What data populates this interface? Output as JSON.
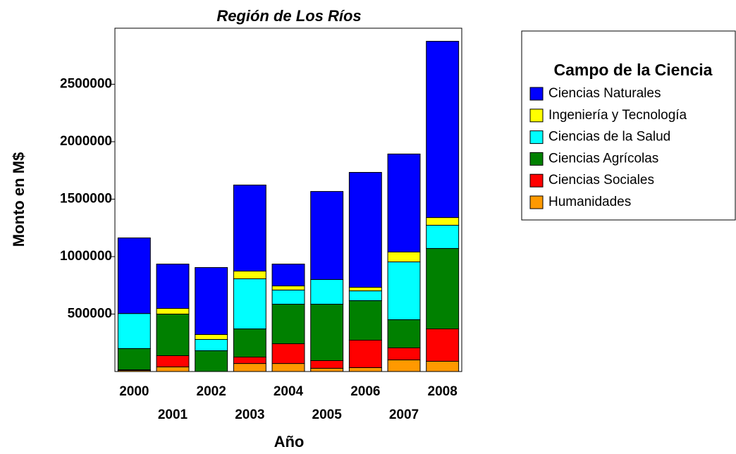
{
  "chart_data": {
    "type": "stacked_bar",
    "title": "Región de Los Ríos",
    "x_label": "Año",
    "y_label": "Monto en M$",
    "legend_title": "Campo de la Ciencia",
    "categories": [
      "2000",
      "2001",
      "2002",
      "2003",
      "2004",
      "2005",
      "2006",
      "2007",
      "2008"
    ],
    "series": [
      {
        "name": "Ciencias Naturales",
        "color": "#0000ff",
        "values": [
          658000,
          386000,
          583000,
          749000,
          190000,
          766000,
          1000000,
          853000,
          1534000
        ]
      },
      {
        "name": "Ingeniería y Tecnología",
        "color": "#ffff00",
        "values": [
          0,
          49000,
          43000,
          67000,
          36000,
          0,
          31000,
          86000,
          67000
        ]
      },
      {
        "name": "Ciencias de la Salud",
        "color": "#00ffff",
        "values": [
          305000,
          0,
          98000,
          436000,
          123000,
          215000,
          85000,
          503000,
          202000
        ]
      },
      {
        "name": "Ciencias Agrícolas",
        "color": "#008000",
        "values": [
          185000,
          362000,
          181000,
          245000,
          344000,
          491000,
          344000,
          245000,
          700000
        ]
      },
      {
        "name": "Ciencias Sociales",
        "color": "#ff0000",
        "values": [
          5000,
          98000,
          0,
          56000,
          172000,
          67000,
          239000,
          105000,
          282000
        ]
      },
      {
        "name": "Humanidades",
        "color": "#ff9900",
        "values": [
          10000,
          40000,
          0,
          70000,
          70000,
          28000,
          34000,
          101000,
          89000
        ]
      }
    ],
    "ylim": [
      0,
      3000000
    ],
    "yticks": [
      500000,
      1000000,
      1500000,
      2000000,
      2500000
    ],
    "legend": "right"
  }
}
